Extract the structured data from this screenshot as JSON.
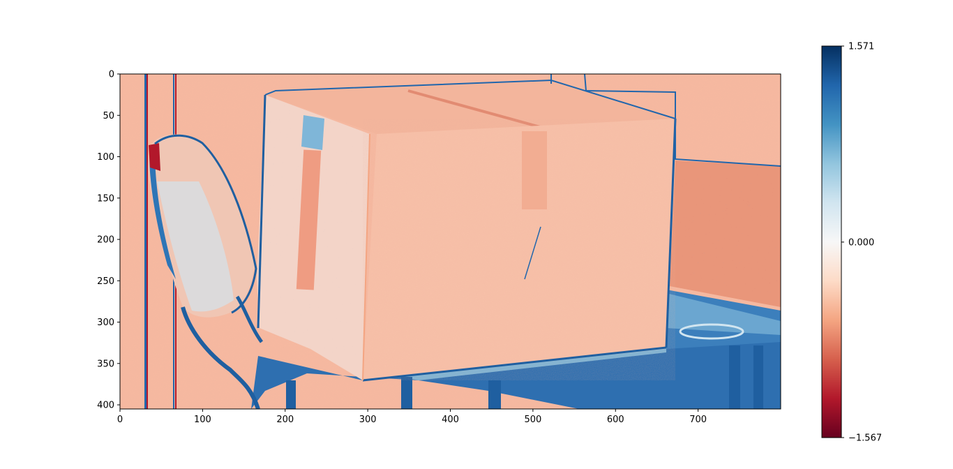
{
  "chart_data": {
    "type": "heatmap",
    "title": "",
    "xlabel": "",
    "ylabel": "",
    "image_size": [
      800,
      405
    ],
    "xlim": [
      0,
      800
    ],
    "ylim": [
      405,
      0
    ],
    "x_ticks": [
      0,
      100,
      200,
      300,
      400,
      500,
      600,
      700
    ],
    "x_tick_labels": [
      "0",
      "100",
      "200",
      "300",
      "400",
      "500",
      "600",
      "700"
    ],
    "y_ticks": [
      0,
      50,
      100,
      150,
      200,
      250,
      300,
      350,
      400
    ],
    "y_tick_labels": [
      "0",
      "50",
      "100",
      "150",
      "200",
      "250",
      "300",
      "350",
      "400"
    ],
    "colormap": "RdBu",
    "colormap_stops": [
      "#67001f",
      "#b2182b",
      "#d6604d",
      "#f4a582",
      "#fddbc7",
      "#f7f7f7",
      "#d1e5f0",
      "#92c5de",
      "#4393c3",
      "#2166ac",
      "#053061"
    ],
    "colorbar": {
      "min": -1.567,
      "max": 1.571,
      "ticks": [
        -1.567,
        0.0,
        1.571
      ],
      "tick_labels": [
        "−1.567",
        "0.000",
        "1.571"
      ]
    },
    "grid": false,
    "depicted_scene": "cardboard box on a chair against a wall"
  }
}
